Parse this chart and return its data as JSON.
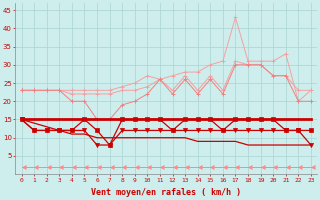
{
  "x": [
    0,
    1,
    2,
    3,
    4,
    5,
    6,
    7,
    8,
    9,
    10,
    11,
    12,
    13,
    14,
    15,
    16,
    17,
    18,
    19,
    20,
    21,
    22,
    23
  ],
  "rafales_upper": [
    23,
    23,
    23,
    23,
    23,
    23,
    23,
    23,
    24,
    25,
    27,
    26,
    27,
    28,
    28,
    30,
    31,
    43,
    31,
    31,
    31,
    33,
    20,
    23
  ],
  "rafales_mid": [
    23,
    23,
    23,
    23,
    22,
    22,
    22,
    22,
    23,
    23,
    24,
    26,
    23,
    27,
    23,
    27,
    23,
    31,
    30,
    30,
    27,
    27,
    23,
    23
  ],
  "rafales_lower": [
    23,
    23,
    23,
    23,
    20,
    20,
    15,
    15,
    19,
    20,
    22,
    26,
    22,
    26,
    22,
    26,
    22,
    30,
    30,
    30,
    27,
    27,
    20,
    20
  ],
  "moyen_jagged1": [
    15,
    12,
    12,
    12,
    12,
    15,
    12,
    8,
    15,
    15,
    15,
    15,
    12,
    15,
    15,
    15,
    12,
    15,
    15,
    15,
    15,
    12,
    12,
    12
  ],
  "moyen_flat": [
    15,
    15,
    15,
    15,
    15,
    15,
    15,
    15,
    15,
    15,
    15,
    15,
    15,
    15,
    15,
    15,
    15,
    15,
    15,
    15,
    15,
    15,
    15,
    15
  ],
  "moyen_jagged2": [
    15,
    12,
    12,
    12,
    12,
    12,
    8,
    8,
    12,
    12,
    12,
    12,
    12,
    12,
    12,
    12,
    12,
    12,
    12,
    12,
    12,
    12,
    12,
    8
  ],
  "moyen_trend": [
    15,
    14,
    13,
    12,
    11,
    11,
    10,
    10,
    10,
    10,
    10,
    10,
    10,
    10,
    9,
    9,
    9,
    9,
    8,
    8,
    8,
    8,
    8,
    8
  ],
  "arrow_line": [
    2,
    2,
    2,
    2,
    2,
    2,
    2,
    2,
    2,
    2,
    2,
    2,
    2,
    2,
    2,
    2,
    2,
    2,
    2,
    2,
    2,
    2,
    2,
    2
  ],
  "bg_color": "#ceeeed",
  "grid_color": "#aad4d3",
  "light_pink": "#f5a0a0",
  "mid_pink": "#f08080",
  "dark_red": "#cc0000",
  "arrow_color": "#ff8888",
  "xlabel": "Vent moyen/en rafales ( km/h )",
  "ylim": [
    0,
    47
  ],
  "yticks": [
    5,
    10,
    15,
    20,
    25,
    30,
    35,
    40,
    45
  ],
  "xticks": [
    0,
    1,
    2,
    3,
    4,
    5,
    6,
    7,
    8,
    9,
    10,
    11,
    12,
    13,
    14,
    15,
    16,
    17,
    18,
    19,
    20,
    21,
    22,
    23
  ]
}
